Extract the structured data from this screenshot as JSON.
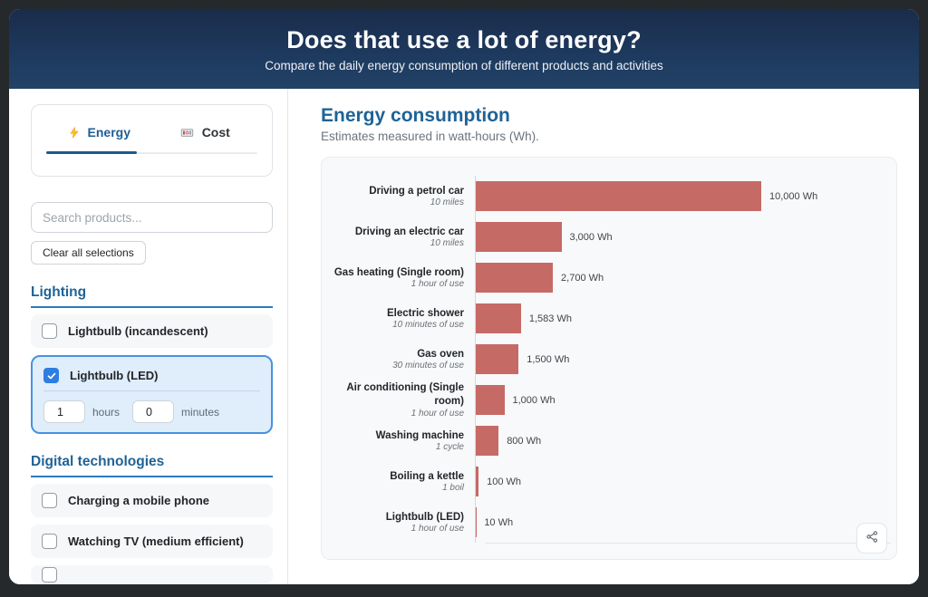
{
  "colors": {
    "header_bg": "#1e3a5f",
    "accent_blue": "#1f6396",
    "section_line": "#2e79c2",
    "active_tab": "#1f5e94",
    "bar": "#c66a66",
    "selected_bg": "#e0edfb",
    "selected_border": "#4792e0",
    "checkbox_checked": "#2e7de1"
  },
  "header": {
    "title": "Does that use a lot of energy?",
    "subtitle": "Compare the daily energy consumption of different products and activities"
  },
  "sidebar": {
    "tabs": [
      {
        "label": "Energy",
        "icon": "lightning-icon",
        "active": true
      },
      {
        "label": "Cost",
        "icon": "banknote-icon",
        "active": false
      }
    ],
    "search": {
      "placeholder": "Search products..."
    },
    "clear_button_label": "Clear all selections",
    "sections": [
      {
        "title": "Lighting",
        "items": [
          {
            "label": "Lightbulb (incandescent)",
            "checked": false
          },
          {
            "label": "Lightbulb (LED)",
            "checked": true,
            "duration": {
              "hours": "1",
              "hours_label": "hours",
              "minutes": "0",
              "minutes_label": "minutes"
            }
          }
        ]
      },
      {
        "title": "Digital technologies",
        "items": [
          {
            "label": "Charging a mobile phone",
            "checked": false
          },
          {
            "label": "Watching TV (medium efficient)",
            "checked": false
          },
          {
            "label": "",
            "checked": false,
            "partial": true
          }
        ]
      }
    ]
  },
  "main": {
    "title": "Energy consumption",
    "subtitle": "Estimates measured in watt-hours (Wh)."
  },
  "chart_data": {
    "type": "bar",
    "orientation": "horizontal",
    "title": "Energy consumption",
    "unit": "Wh",
    "xlim": [
      0,
      10000
    ],
    "grid": false,
    "categories": [
      "Driving a petrol car",
      "Driving an electric car",
      "Gas heating (Single room)",
      "Electric shower",
      "Gas oven",
      "Air conditioning (Single room)",
      "Washing machine",
      "Boiling a kettle",
      "Lightbulb (LED)"
    ],
    "usage_labels": [
      "10 miles",
      "10 miles",
      "1 hour of use",
      "10 minutes of use",
      "30 minutes of use",
      "1 hour of use",
      "1 cycle",
      "1 boil",
      "1 hour of use"
    ],
    "values": [
      10000,
      3000,
      2700,
      1583,
      1500,
      1000,
      800,
      100,
      10
    ],
    "value_labels": [
      "10,000 Wh",
      "3,000 Wh",
      "2,700 Wh",
      "1,583 Wh",
      "1,500 Wh",
      "1,000 Wh",
      "800 Wh",
      "100 Wh",
      "10 Wh"
    ]
  }
}
